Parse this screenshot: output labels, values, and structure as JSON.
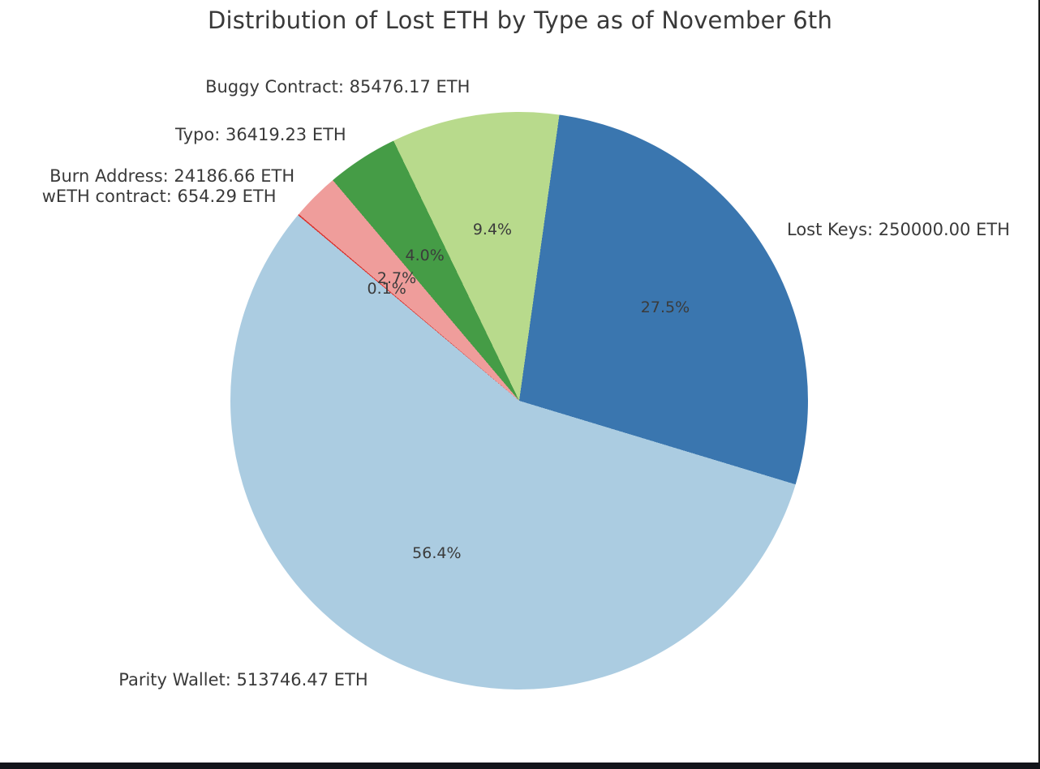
{
  "title": "Distribution of Lost ETH by Type as of November 6th",
  "colors": {
    "text": "#3a3a3a",
    "background": "#ffffff",
    "bottom_bar": "#12141a",
    "right_edge_line": "#1b1b1b"
  },
  "chart_data": {
    "type": "pie",
    "title": "Distribution of Lost ETH by Type as of November 6th",
    "unit": "ETH",
    "legend": "none",
    "start_angle_clockwise_from_top_deg": 8,
    "label_distance": 1.1,
    "pct_distance": 0.6,
    "slices_clockwise": [
      {
        "label": "Lost Keys",
        "value": 250000.0,
        "display": "Lost Keys: 250000.00 ETH",
        "pct_label": "27.5%",
        "color": "#3a76af"
      },
      {
        "label": "Parity Wallet",
        "value": 513746.47,
        "display": "Parity Wallet: 513746.47 ETH",
        "pct_label": "56.4%",
        "color": "#abcce1"
      },
      {
        "label": "wETH contract",
        "value": 654.29,
        "display": "wETH contract: 654.29 ETH",
        "pct_label": "0.1%",
        "color": "#d9342f"
      },
      {
        "label": "Burn Address",
        "value": 24186.66,
        "display": "Burn Address: 24186.66 ETH",
        "pct_label": "2.7%",
        "color": "#ef9d9b"
      },
      {
        "label": "Typo",
        "value": 36419.23,
        "display": "Typo: 36419.23 ETH",
        "pct_label": "4.0%",
        "color": "#459c46"
      },
      {
        "label": "Buggy Contract",
        "value": 85476.17,
        "display": "Buggy Contract: 85476.17 ETH",
        "pct_label": "9.4%",
        "color": "#b8da8c"
      }
    ]
  }
}
